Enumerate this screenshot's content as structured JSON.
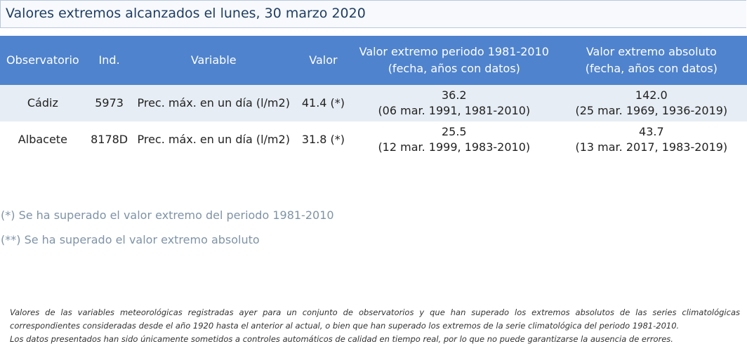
{
  "title": "Valores extremos alcanzados el lunes, 30 marzo 2020",
  "table": {
    "headers": [
      "Observatorio",
      "Ind.",
      "Variable",
      "Valor",
      [
        "Valor extremo periodo 1981-2010",
        "(fecha, años con datos)"
      ],
      [
        "Valor extremo absoluto",
        "(fecha, años con datos)"
      ]
    ],
    "rows": [
      {
        "observatorio": "Cádiz",
        "ind": "5973",
        "variable": "Prec. máx. en un día (l/m2)",
        "valor": "41.4 (*)",
        "periodo_valor": "36.2",
        "periodo_fecha": "(06 mar. 1991, 1981-2010)",
        "absoluto_valor": "142.0",
        "absoluto_fecha": "(25 mar. 1969, 1936-2019)"
      },
      {
        "observatorio": "Albacete",
        "ind": "8178D",
        "variable": "Prec. máx. en un día (l/m2)",
        "valor": "31.8 (*)",
        "periodo_valor": "25.5",
        "periodo_fecha": "(12 mar. 1999, 1983-2010)",
        "absoluto_valor": "43.7",
        "absoluto_fecha": "(13 mar. 2017, 1983-2019)"
      }
    ]
  },
  "notes": [
    "(*) Se ha superado el valor extremo del periodo 1981-2010",
    "(**) Se ha superado el valor extremo absoluto"
  ],
  "footer": [
    "Valores de las variables meteorológicas registradas ayer para un conjunto de observatorios y que han superado los extremos absolutos de las series climatológicas correspondientes consideradas desde el año 1920 hasta el anterior al actual, o bien que han superado los extremos de la serie climatológica del periodo 1981-2010.",
    "Los datos presentados han sido únicamente sometidos a controles automáticos de calidad en tiempo real, por lo que no puede garantizarse la ausencia de errores."
  ]
}
